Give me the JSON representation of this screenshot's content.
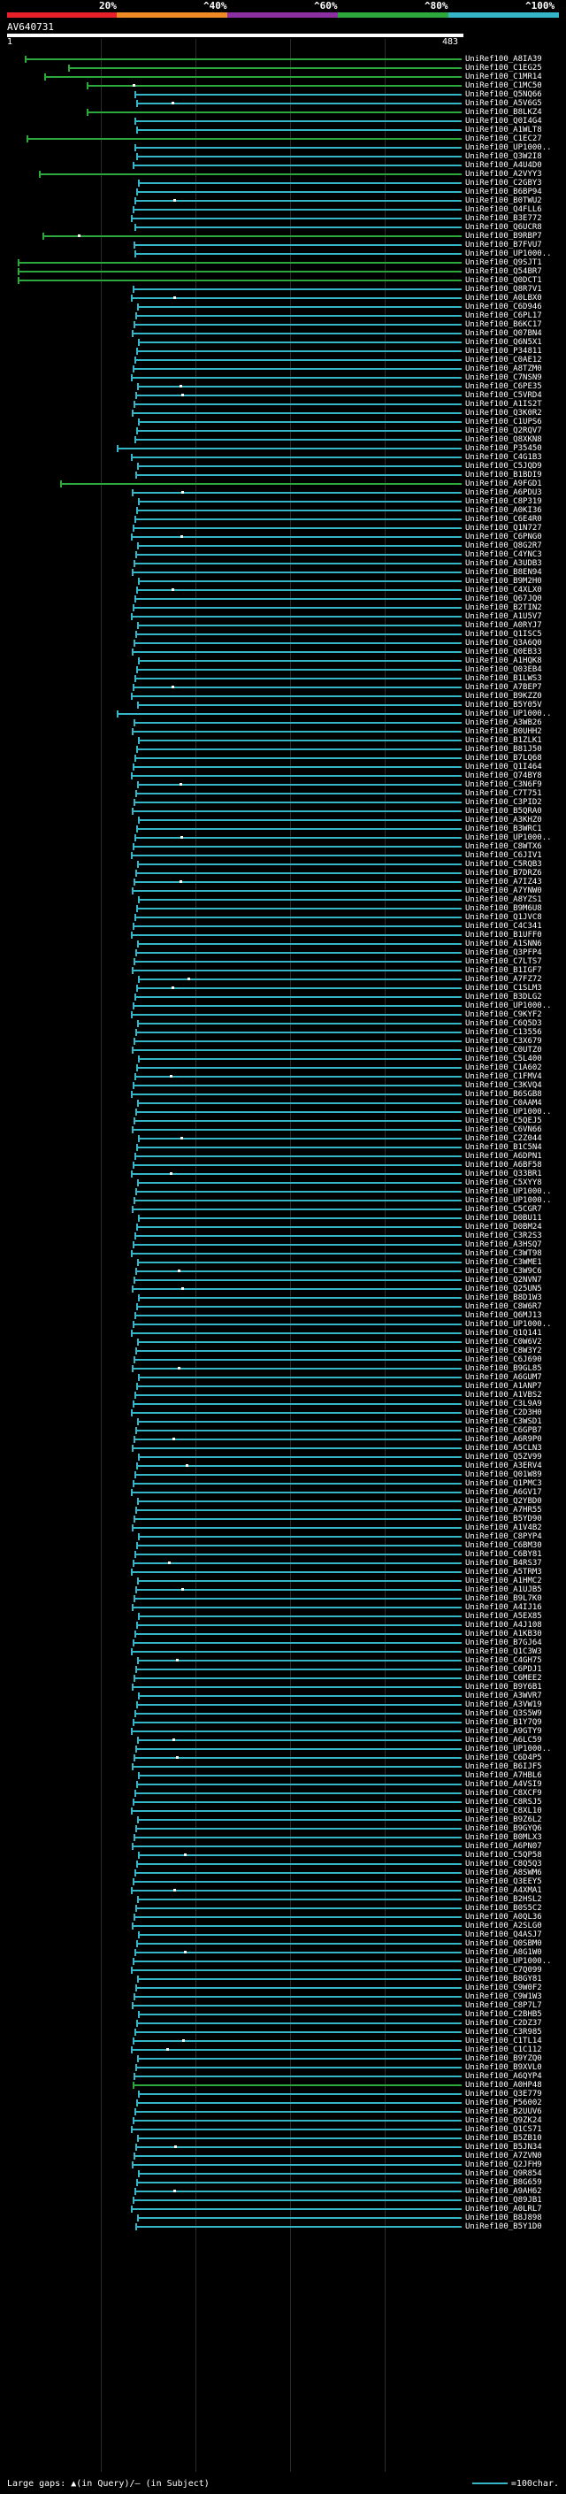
{
  "scale": {
    "labels": [
      "20%",
      "^40%",
      "^60%",
      "^80%",
      "^100%"
    ],
    "colors": [
      "#e8202a",
      "#f08a24",
      "#8c2fa0",
      "#2da83c",
      "#35b6c8"
    ]
  },
  "query": {
    "title": "AV640731",
    "start_label": "1",
    "end_label": "483"
  },
  "hits": [
    "UniRef100_A8IA39",
    "UniRef100_C1EG25",
    "UniRef100_C1MR14",
    "UniRef100_C1MC50",
    "UniRef100_Q5NQ66",
    "UniRef100_A5V6G5",
    "UniRef100_B8LKZ4",
    "UniRef100_Q0I4G4",
    "UniRef100_A1WLT8",
    "UniRef100_C1EC27",
    "UniRef100_UP1000..",
    "UniRef100_Q3W2I8",
    "UniRef100_A4U4D0",
    "UniRef100_A2VYY3",
    "UniRef100_C2GBY3",
    "UniRef100_B6BP94",
    "UniRef100_B0TWU2",
    "UniRef100_Q4FLL6",
    "UniRef100_B3E772",
    "UniRef100_Q6UCR8",
    "UniRef100_B9RBP7",
    "UniRef100_B7FVU7",
    "UniRef100_UP1000..",
    "UniRef100_Q9SJT1",
    "UniRef100_Q54BR7",
    "UniRef100_Q0DCT1",
    "UniRef100_Q8R7V1",
    "UniRef100_A0LBX0",
    "UniRef100_C6D946",
    "UniRef100_C6PL17",
    "UniRef100_B6KC17",
    "UniRef100_Q07BN4",
    "UniRef100_Q6N5X1",
    "UniRef100_P34811",
    "UniRef100_C0AE12",
    "UniRef100_A8TZM0",
    "UniRef100_C7NSN9",
    "UniRef100_C6PE35",
    "UniRef100_C5VRD4",
    "UniRef100_A1IS2T",
    "UniRef100_Q3K0R2",
    "UniRef100_C1UPS6",
    "UniRef100_Q2RQV7",
    "UniRef100_Q8XKN8",
    "UniRef100_P35450",
    "UniRef100_C4G1B3",
    "UniRef100_C5JQD9",
    "UniRef100_B1BDI9",
    "UniRef100_A9FGD1",
    "UniRef100_A6PDU3",
    "UniRef100_C8P319",
    "UniRef100_A0KI36",
    "UniRef100_C6E4R0",
    "UniRef100_Q1N727",
    "UniRef100_C6PNG0",
    "UniRef100_Q8G2R7",
    "UniRef100_C4YNC3",
    "UniRef100_A3UDB3",
    "UniRef100_B8EN94",
    "UniRef100_B9M2H0",
    "UniRef100_C4XLX0",
    "UniRef100_Q67JQ0",
    "UniRef100_B2TIN2",
    "UniRef100_A1U5V7",
    "UniRef100_A0RYJ7",
    "UniRef100_Q1ISC5",
    "UniRef100_Q3A6Q0",
    "UniRef100_Q0EB33",
    "UniRef100_A1HQK8",
    "UniRef100_Q03EB4",
    "UniRef100_B1LWS3",
    "UniRef100_A7BEP7",
    "UniRef100_B9KZZ0",
    "UniRef100_B5Y05V",
    "UniRef100_UP1000..",
    "UniRef100_A3WB26",
    "UniRef100_B0UHH2",
    "UniRef100_B1ZLK1",
    "UniRef100_B81J50",
    "UniRef100_B7LQ68",
    "UniRef100_Q1I464",
    "UniRef100_Q74BY8",
    "UniRef100_C3N6F9",
    "UniRef100_C7T751",
    "UniRef100_C3PID2",
    "UniRef100_B5QRA0",
    "UniRef100_A3KHZ0",
    "UniRef100_B3WRC1",
    "UniRef100_UP1000..",
    "UniRef100_C8WTX6",
    "UniRef100_C6JIV1",
    "UniRef100_C5RQB3",
    "UniRef100_B7DRZ6",
    "UniRef100_A7IZ43",
    "UniRef100_A7YNW0",
    "UniRef100_A8YZS1",
    "UniRef100_B9M6U8",
    "UniRef100_Q1JVC8",
    "UniRef100_C4C341",
    "UniRef100_B1UFF0",
    "UniRef100_A1SNN6",
    "UniRef100_Q3PFP4",
    "UniRef100_C7LTS7",
    "UniRef100_B1IGF7",
    "UniRef100_A7FZ72",
    "UniRef100_C1SLM3",
    "UniRef100_B3DLG2",
    "UniRef100_UP1000..",
    "UniRef100_C9KYF2",
    "UniRef100_C6Q5D3",
    "UniRef100_C13556",
    "UniRef100_C3X679",
    "UniRef100_C0UTZ0",
    "UniRef100_C5L400",
    "UniRef100_C1A602",
    "UniRef100_C1FMV4",
    "UniRef100_C3KVQ4",
    "UniRef100_B6SGB8",
    "UniRef100_C0AAM4",
    "UniRef100_UP1000..",
    "UniRef100_C5QEJ5",
    "UniRef100_C6VN66",
    "UniRef100_C2Z044",
    "UniRef100_B1C5N4",
    "UniRef100_A6DPN1",
    "UniRef100_A6BF58",
    "UniRef100_Q33BR1",
    "UniRef100_C5XYY8",
    "UniRef100_UP1000..",
    "UniRef100_UP1000..",
    "UniRef100_C5CGR7",
    "UniRef100_D0BU11",
    "UniRef100_D0BM24",
    "UniRef100_C3R2S3",
    "UniRef100_A3HSQ7",
    "UniRef100_C3WT98",
    "UniRef100_C3WME1",
    "UniRef100_C3W9C6",
    "UniRef100_Q2NVN7",
    "UniRef100_Q25UN5",
    "UniRef100_B8D1W3",
    "UniRef100_C8W6R7",
    "UniRef100_Q6MJ13",
    "UniRef100_UP1000..",
    "UniRef100_Q1Q141",
    "UniRef100_C0W6V2",
    "UniRef100_C8W3Y2",
    "UniRef100_C6J690",
    "UniRef100_B9GL85",
    "UniRef100_A6GUM7",
    "UniRef100_A1ANP7",
    "UniRef100_A1VBS2",
    "UniRef100_C3L9A9",
    "UniRef100_C2D3H0",
    "UniRef100_C3WSD1",
    "UniRef100_C6GPB7",
    "UniRef100_A6R9P0",
    "UniRef100_A5CLN3",
    "UniRef100_Q5ZV99",
    "UniRef100_A3ERV4",
    "UniRef100_Q01W89",
    "UniRef100_Q1PMC3",
    "UniRef100_A6GV17",
    "UniRef100_Q2YBD0",
    "UniRef100_A7HR55",
    "UniRef100_B5YD90",
    "UniRef100_A1V4B2",
    "UniRef100_C8PYP4",
    "UniRef100_C6BM30",
    "UniRef100_C6BY81",
    "UniRef100_B4RS37",
    "UniRef100_A5TRM3",
    "UniRef100_A1HMC2",
    "UniRef100_A1UJB5",
    "UniRef100_B9L7K0",
    "UniRef100_A4IJ16",
    "UniRef100_A5EX85",
    "UniRef100_A4J108",
    "UniRef100_A1KB30",
    "UniRef100_B7GJ64",
    "UniRef100_Q1C3W3",
    "UniRef100_C4GH75",
    "UniRef100_C6PDJ1",
    "UniRef100_C6MEE2",
    "UniRef100_B9Y6B1",
    "UniRef100_A3WVR7",
    "UniRef100_A3VW19",
    "UniRef100_Q3S5W9",
    "UniRef100_B1Y7Q9",
    "UniRef100_A9GTY9",
    "UniRef100_A6LC59",
    "UniRef100_UP1000..",
    "UniRef100_C6D4P5",
    "UniRef100_B6IJF5",
    "UniRef100_A7HBL6",
    "UniRef100_A4VSI9",
    "UniRef100_C8XCF9",
    "UniRef100_C8RSJ5",
    "UniRef100_C8XL10",
    "UniRef100_B9Z6L2",
    "UniRef100_B9GYQ6",
    "UniRef100_B0MLX3",
    "UniRef100_A6PN07",
    "UniRef100_C5QP58",
    "UniRef100_C8Q5Q3",
    "UniRef100_A8SWM6",
    "UniRef100_Q3EEY5",
    "UniRef100_A4XMA1",
    "UniRef100_B2HSL2",
    "UniRef100_B0S5C2",
    "UniRef100_A0QL36",
    "UniRef100_A2SLG0",
    "UniRef100_Q4ASJ7",
    "UniRef100_Q0SBM0",
    "UniRef100_A8G1W0",
    "UniRef100_UP1000..",
    "UniRef100_C7Q099",
    "UniRef100_B8GY81",
    "UniRef100_C9W0F2",
    "UniRef100_C9W1W3",
    "UniRef100_C8P7L7",
    "UniRef100_C2BHB5",
    "UniRef100_C2DZ37",
    "UniRef100_C3R985",
    "UniRef100_C1TL14",
    "UniRef100_C1C112",
    "UniRef100_B9YZQ0",
    "UniRef100_B9XVL0",
    "UniRef100_A6QYP4",
    "UniRef100_A0HP48",
    "UniRef100_Q3E779",
    "UniRef100_P56002",
    "UniRef100_B2UUV6",
    "UniRef100_Q9ZK24",
    "UniRef100_Q1CS71",
    "UniRef100_B5ZB10",
    "UniRef100_B5JN34",
    "UniRef100_A7ZVN0",
    "UniRef100_Q2JFH9",
    "UniRef100_Q9R854",
    "UniRef100_B8G659",
    "UniRef100_A9AH62",
    "UniRef100_Q89JB1",
    "UniRef100_A0LRL7",
    "UniRef100_B8J898",
    "UniRef100_B5Y1D0"
  ],
  "footer": {
    "gaps_text": "Large gaps: ▲(in Query)/— (in Subject)",
    "legend_text": "=100char."
  }
}
